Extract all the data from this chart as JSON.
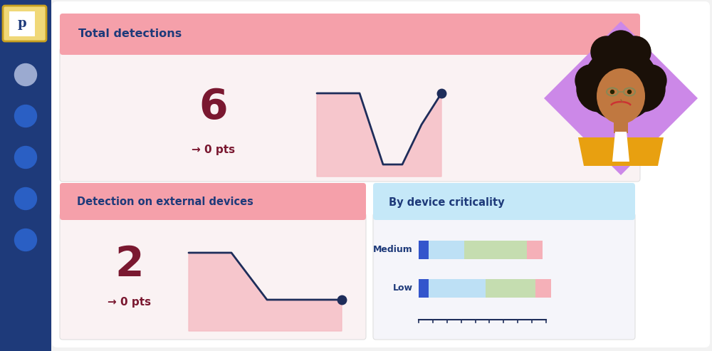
{
  "bg_color": "#f2f2f2",
  "sidebar_color": "#1e3a7a",
  "sidebar_dots": [
    "#9baad0",
    "#2a5fc4",
    "#2a5fc4",
    "#2a5fc4",
    "#2a5fc4"
  ],
  "total_detections_header": "Total detections",
  "total_detections_header_bg": "#f5a0aa",
  "total_detections_body_bg": "#faf2f3",
  "total_detections_value": "6",
  "total_detections_pts": "→ 0 pts",
  "total_detections_color": "#7a1830",
  "ext_devices_header": "Detection on external devices",
  "ext_devices_header_bg": "#f5a0aa",
  "ext_devices_body_bg": "#faf2f3",
  "ext_devices_value": "2",
  "ext_devices_pts": "→ 0 pts",
  "ext_devices_color": "#7a1830",
  "criticality_header": "By device criticality",
  "criticality_header_bg": "#c5e8f8",
  "criticality_body_bg": "#f5f5fa",
  "line_color": "#1e2d5a",
  "line_fill_color": "#f5b8c0",
  "bar_blue": "#3355cc",
  "bar_lightblue": "#bde0f5",
  "bar_green": "#c5ddb0",
  "bar_pink": "#f5b0b8",
  "profile_diamond_color": "#cc88e8",
  "main_bg": "#ffffff",
  "card_border": "#e0e0e0"
}
